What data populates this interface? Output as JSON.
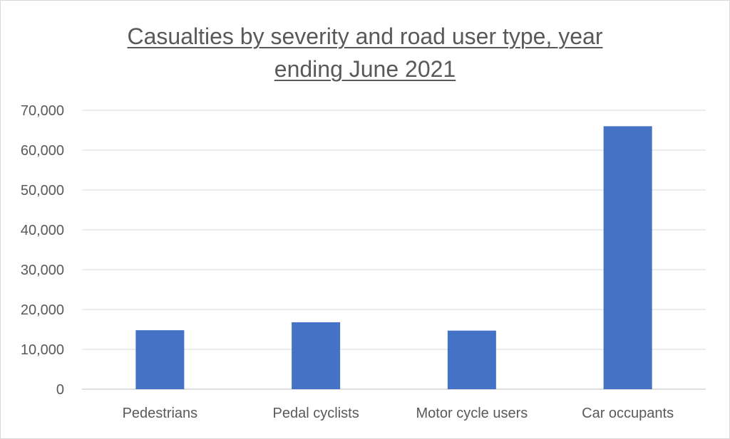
{
  "chart_data": {
    "type": "bar",
    "title_line1": "Casualties by severity and road user type, year",
    "title_line2": "ending June 2021",
    "categories": [
      "Pedestrians",
      "Pedal cyclists",
      "Motor cycle users",
      "Car occupants"
    ],
    "values": [
      14800,
      16800,
      14700,
      66000
    ],
    "yticks": [
      "0",
      "10,000",
      "20,000",
      "30,000",
      "40,000",
      "50,000",
      "60,000",
      "70,000"
    ],
    "ylim": [
      0,
      70000
    ],
    "grid": true,
    "bar_color": "#4472C4",
    "xlabel": "",
    "ylabel": ""
  }
}
